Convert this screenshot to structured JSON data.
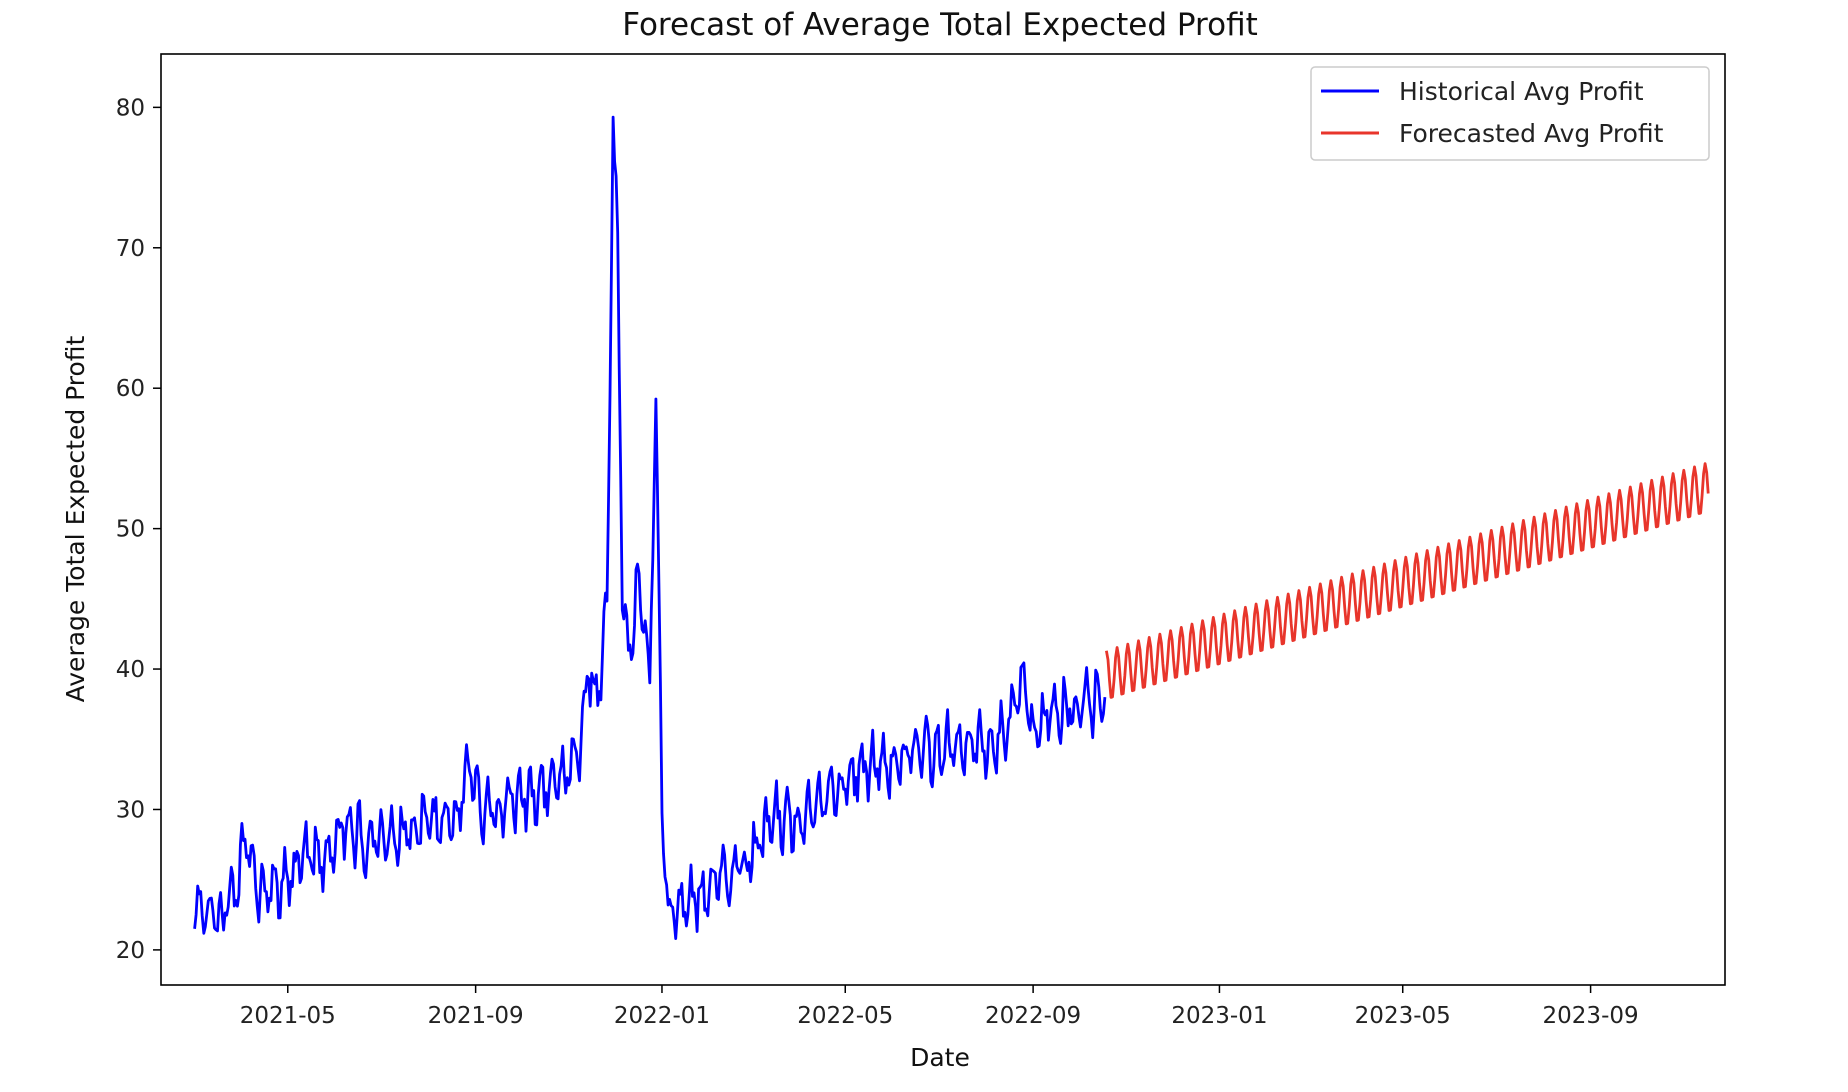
{
  "chart_data": {
    "type": "line",
    "title": "Forecast of Average Total Expected Profit",
    "xlabel": "Date",
    "ylabel": "Average Total Expected Profit",
    "xlim": [
      "2021-02-07",
      "2023-11-28"
    ],
    "ylim": [
      17.5,
      83.8
    ],
    "grid": false,
    "legend_position": "top-right",
    "x_ticks": [
      "2021-05",
      "2021-09",
      "2022-01",
      "2022-05",
      "2022-09",
      "2023-01",
      "2023-05",
      "2023-09"
    ],
    "y_ticks": [
      20,
      30,
      40,
      50,
      60,
      70,
      80
    ],
    "series": [
      {
        "name": "Historical Avg Profit",
        "color": "#0000ff",
        "style": "daily-noisy",
        "points": [
          [
            "2021-03-01",
            22.5
          ],
          [
            "2021-03-15",
            22.2
          ],
          [
            "2021-03-28",
            24.0
          ],
          [
            "2021-04-03",
            28.2
          ],
          [
            "2021-04-12",
            24.3
          ],
          [
            "2021-04-25",
            24.1
          ],
          [
            "2021-05-10",
            26.5
          ],
          [
            "2021-05-25",
            26.7
          ],
          [
            "2021-06-05",
            29.0
          ],
          [
            "2021-06-20",
            27.8
          ],
          [
            "2021-07-05",
            28.4
          ],
          [
            "2021-07-20",
            28.5
          ],
          [
            "2021-08-05",
            29.2
          ],
          [
            "2021-08-20",
            29.8
          ],
          [
            "2021-08-28",
            33.5
          ],
          [
            "2021-09-05",
            30.2
          ],
          [
            "2021-09-20",
            30.3
          ],
          [
            "2021-10-05",
            31.0
          ],
          [
            "2021-10-20",
            31.5
          ],
          [
            "2021-11-01",
            32.5
          ],
          [
            "2021-11-08",
            34.0
          ],
          [
            "2021-11-14",
            40.0
          ],
          [
            "2021-11-20",
            37.5
          ],
          [
            "2021-11-26",
            44.0
          ],
          [
            "2021-11-30",
            79.0
          ],
          [
            "2021-12-03",
            70.0
          ],
          [
            "2021-12-06",
            46.0
          ],
          [
            "2021-12-10",
            41.0
          ],
          [
            "2021-12-15",
            45.5
          ],
          [
            "2021-12-20",
            45.0
          ],
          [
            "2021-12-24",
            38.5
          ],
          [
            "2021-12-28",
            59.5
          ],
          [
            "2022-01-01",
            30.0
          ],
          [
            "2022-01-05",
            22.5
          ],
          [
            "2022-01-15",
            23.2
          ],
          [
            "2022-02-01",
            24.5
          ],
          [
            "2022-02-15",
            25.5
          ],
          [
            "2022-03-01",
            26.8
          ],
          [
            "2022-03-15",
            29.5
          ],
          [
            "2022-04-01",
            29.0
          ],
          [
            "2022-04-15",
            30.5
          ],
          [
            "2022-05-01",
            32.0
          ],
          [
            "2022-05-15",
            33.0
          ],
          [
            "2022-06-01",
            33.5
          ],
          [
            "2022-06-15",
            34.0
          ],
          [
            "2022-07-01",
            34.3
          ],
          [
            "2022-07-15",
            35.0
          ],
          [
            "2022-08-01",
            34.8
          ],
          [
            "2022-08-15",
            35.5
          ],
          [
            "2022-08-25",
            39.5
          ],
          [
            "2022-09-01",
            36.0
          ],
          [
            "2022-09-15",
            37.0
          ],
          [
            "2022-10-01",
            37.5
          ],
          [
            "2022-10-18",
            38.0
          ]
        ]
      },
      {
        "name": "Forecasted Avg Profit",
        "color": "#e8352b",
        "style": "weekly-oscillation",
        "start": "2022-10-19",
        "end": "2023-11-17",
        "start_center": 39.5,
        "end_center": 52.9,
        "amplitude": 1.8,
        "period_days": 7
      }
    ]
  }
}
